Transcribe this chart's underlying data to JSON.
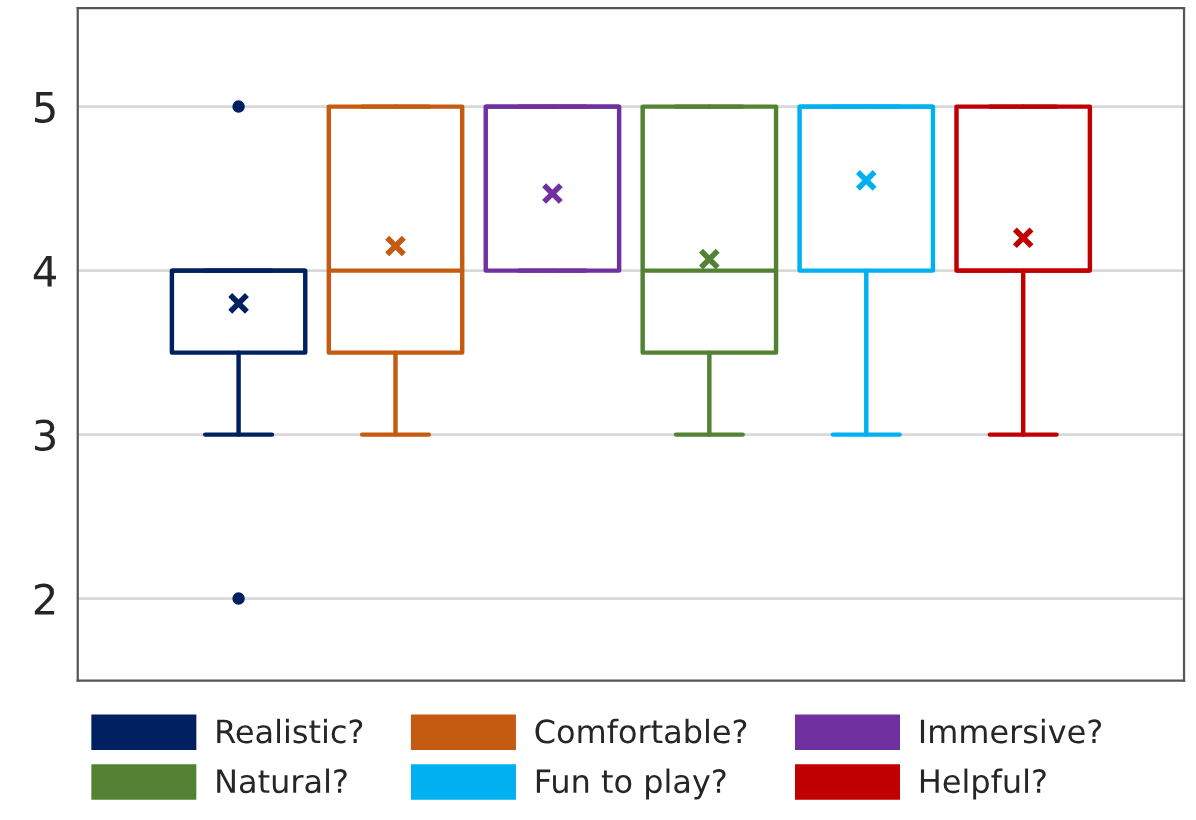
{
  "chart_data": {
    "type": "box",
    "categories": [
      null
    ],
    "ylim": [
      1.5,
      5.6
    ],
    "yticks": [
      2,
      3,
      4,
      5
    ],
    "grid": "y",
    "legend": "bottom",
    "marker": "cross",
    "series": [
      {
        "name": "Realistic?",
        "color": "#002060",
        "boxes": [
          {
            "low": 3,
            "q1": 3.5,
            "median": 4,
            "q3": 4,
            "high": 4,
            "mean": 3.8,
            "outliers": [
              5,
              2
            ]
          }
        ]
      },
      {
        "name": "Comfortable?",
        "color": "#c55a11",
        "boxes": [
          {
            "low": 3,
            "q1": 3.5,
            "median": 4,
            "q3": 5,
            "high": 5,
            "mean": 4.15
          }
        ]
      },
      {
        "name": "Immersive?",
        "color": "#7030a0",
        "boxes": [
          {
            "low": 4,
            "q1": 4,
            "median": 5,
            "q3": 5,
            "high": 5,
            "mean": 4.47
          }
        ]
      },
      {
        "name": "Natural?",
        "color": "#548235",
        "boxes": [
          {
            "low": 3,
            "q1": 3.5,
            "median": 4,
            "q3": 5,
            "high": 5,
            "mean": 4.07
          }
        ]
      },
      {
        "name": "Fun to play?",
        "color": "#00b0f0",
        "boxes": [
          {
            "low": 3,
            "q1": 4,
            "median": 5,
            "q3": 5,
            "high": 5,
            "mean": 4.55
          }
        ]
      },
      {
        "name": "Helpful?",
        "color": "#c00000",
        "boxes": [
          {
            "low": 3,
            "q1": 4,
            "median": 4,
            "q3": 5,
            "high": 5,
            "mean": 4.2
          }
        ]
      }
    ]
  }
}
